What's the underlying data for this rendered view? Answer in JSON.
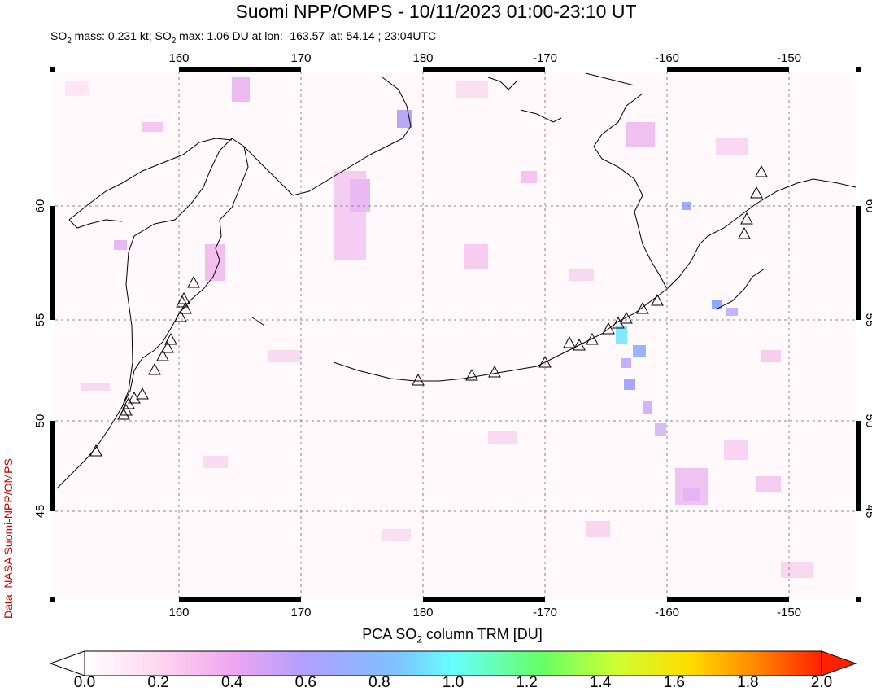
{
  "title": "Suomi NPP/OMPS - 10/11/2023 01:00-23:10 UT",
  "subtitle": {
    "prefix": "SO",
    "mass_label": " mass: 0.231 kt; SO",
    "max_label": " max: 1.06 DU at lon: -163.57 lat: 54.14 ; 23:04UTC",
    "sub": "2"
  },
  "credit": "Data: NASA Suomi-NPP/OMPS",
  "map": {
    "lon_labels": [
      "160",
      "170",
      "180",
      "-170",
      "-160",
      "-150"
    ],
    "lat_labels": [
      "60",
      "55",
      "50",
      "45"
    ],
    "max_marker": {
      "lon": -163.57,
      "lat": 54.14
    },
    "volcano_icon": "triangle-volcano-icon"
  },
  "colorbar": {
    "title_prefix": "PCA SO",
    "title_sub": "2",
    "title_suffix": " column TRM [DU]",
    "ticks": [
      "0.0",
      "0.2",
      "0.4",
      "0.6",
      "0.8",
      "1.0",
      "1.2",
      "1.4",
      "1.6",
      "1.8",
      "2.0"
    ],
    "min": 0.0,
    "max": 2.0,
    "colors": [
      "#ffffff",
      "#ffd6f0",
      "#f0a6f0",
      "#b0a0ff",
      "#80c0ff",
      "#66ffff",
      "#66ff66",
      "#ccff33",
      "#ffdd00",
      "#ff8800",
      "#ff2200"
    ]
  }
}
